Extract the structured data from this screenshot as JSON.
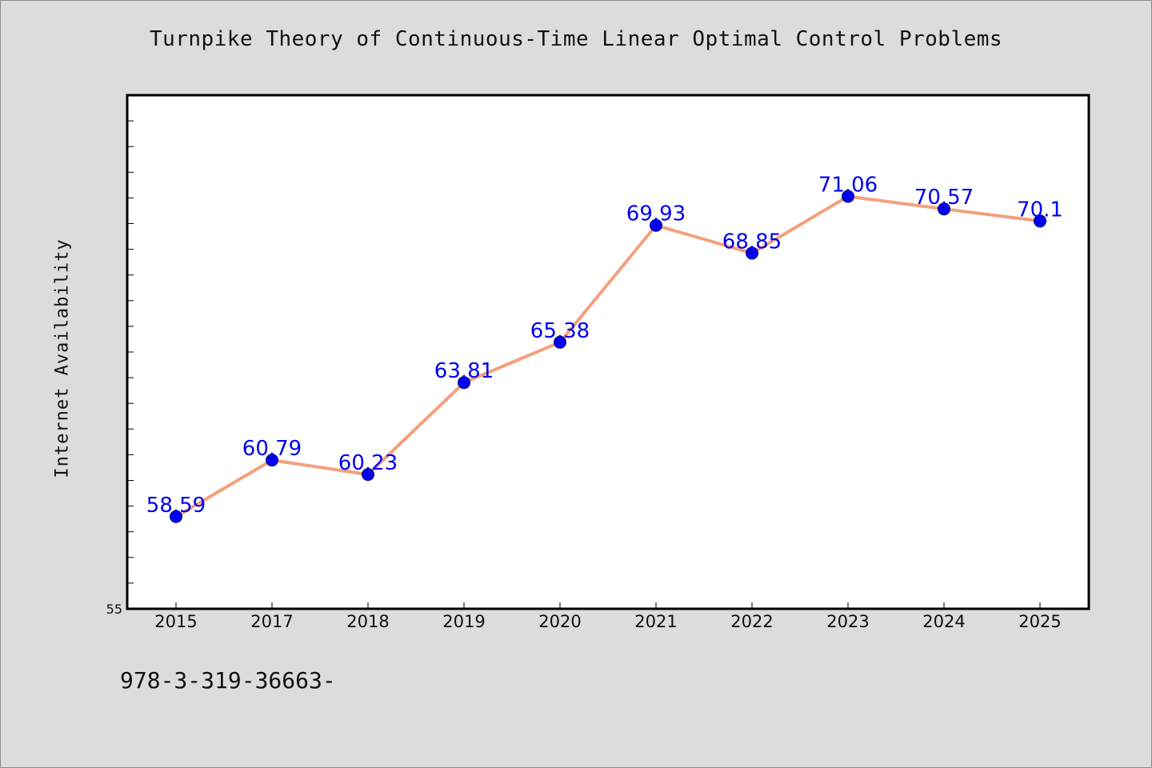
{
  "chart_data": {
    "type": "line",
    "title": "Turnpike Theory of Continuous-Time Linear Optimal Control Problems",
    "xlabel": "",
    "ylabel": "Internet Availability",
    "categories": [
      "2015",
      "2017",
      "2018",
      "2019",
      "2020",
      "2021",
      "2022",
      "2023",
      "2024",
      "2025"
    ],
    "series": [
      {
        "values": [
          58.59,
          60.79,
          60.23,
          63.81,
          65.38,
          69.93,
          68.85,
          71.06,
          70.57,
          70.1
        ],
        "data_labels": [
          "58.59",
          "60.79",
          "60.23",
          "63.81",
          "65.38",
          "69.93",
          "68.85",
          "71.06",
          "70.57",
          "70.1"
        ]
      }
    ],
    "ylim": [
      55,
      75
    ],
    "y_tick_labels": [
      "55"
    ],
    "grid": false,
    "legend": "none",
    "colors": {
      "line": "#f4a07c",
      "marker": "#0000ee",
      "data_label": "#0000ee",
      "plot_background": "#ffffff",
      "page_background": "#dcdcdc"
    }
  },
  "footer": {
    "text": "978-3-319-36663-"
  }
}
